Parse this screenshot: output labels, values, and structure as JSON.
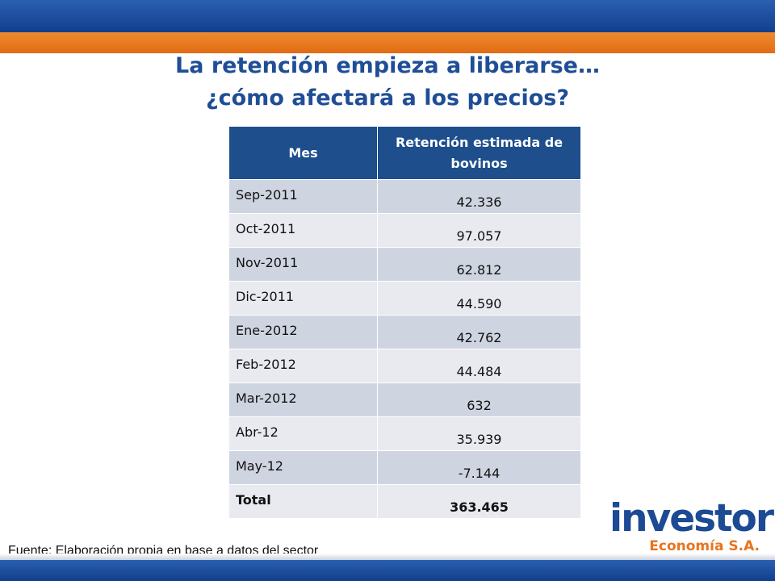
{
  "title": {
    "line1": "La retención empieza a liberarse…",
    "line2": "¿cómo afectará a los precios?"
  },
  "table": {
    "headers": [
      "Mes",
      "Retención estimada de bovinos"
    ],
    "rows": [
      {
        "mes": "Sep-2011",
        "valor": "42.336"
      },
      {
        "mes": "Oct-2011",
        "valor": "97.057"
      },
      {
        "mes": "Nov-2011",
        "valor": "62.812"
      },
      {
        "mes": "Dic-2011",
        "valor": "44.590"
      },
      {
        "mes": "Ene-2012",
        "valor": "42.762"
      },
      {
        "mes": "Feb-2012",
        "valor": "44.484"
      },
      {
        "mes": "Mar-2012",
        "valor": "632"
      },
      {
        "mes": "Abr-12",
        "valor": "35.939"
      },
      {
        "mes": "May-12",
        "valor": "-7.144"
      }
    ],
    "total": {
      "mes": "Total",
      "valor": "363.465"
    }
  },
  "source": "Fuente: Elaboración propia en base a datos del sector",
  "logo": {
    "word": "investor",
    "sub": "Economía S.A."
  },
  "colors": {
    "header_blue": "#1e4e8c",
    "title_blue": "#1f4e96",
    "accent_orange": "#e8741e"
  }
}
